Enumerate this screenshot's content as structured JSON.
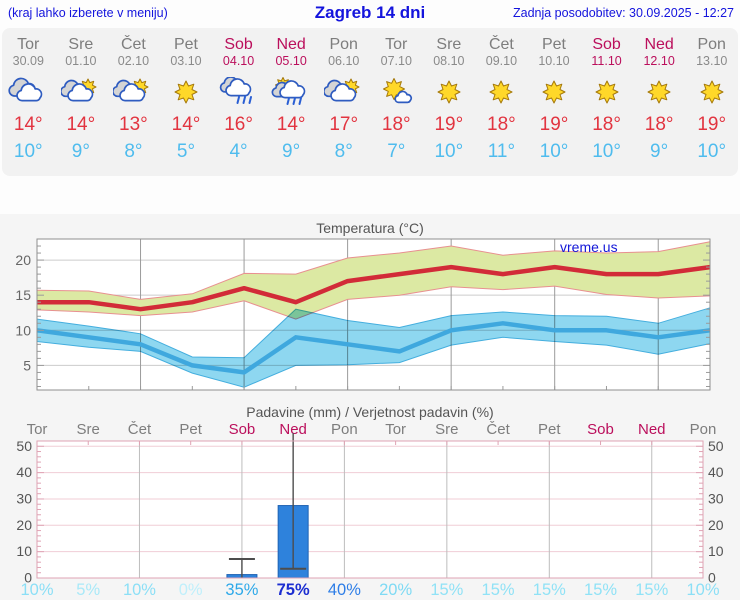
{
  "header": {
    "left_note": "(kraj lahko izberete v meniju)",
    "title": "Zagreb 14 dni",
    "updated": "Zadnja posodobitev: 30.09.2025 - 12:27"
  },
  "watermark": "vreme.us",
  "colors": {
    "link_blue": "#1414dd",
    "weekend_day": "#bb0f5c",
    "weekday_gray": "#7d7d7d",
    "temp_max_red": "#e23440",
    "temp_min_blue": "#4fbcee",
    "bar_blue": "#2e82dc"
  },
  "days": [
    {
      "name": "Tor",
      "date": "30.09",
      "weekend": false,
      "icon": "cloudy",
      "tmax": "14",
      "tmin": "10"
    },
    {
      "name": "Sre",
      "date": "01.10",
      "weekend": false,
      "icon": "partly",
      "tmax": "14",
      "tmin": "9"
    },
    {
      "name": "Čet",
      "date": "02.10",
      "weekend": false,
      "icon": "partly",
      "tmax": "13",
      "tmin": "8"
    },
    {
      "name": "Pet",
      "date": "03.10",
      "weekend": false,
      "icon": "sunny",
      "tmax": "14",
      "tmin": "5"
    },
    {
      "name": "Sob",
      "date": "04.10",
      "weekend": true,
      "icon": "rain",
      "tmax": "16",
      "tmin": "4"
    },
    {
      "name": "Ned",
      "date": "05.10",
      "weekend": true,
      "icon": "sun-rain",
      "tmax": "14",
      "tmin": "9"
    },
    {
      "name": "Pon",
      "date": "06.10",
      "weekend": false,
      "icon": "partly",
      "tmax": "17",
      "tmin": "8"
    },
    {
      "name": "Tor",
      "date": "07.10",
      "weekend": false,
      "icon": "mostly-sunny",
      "tmax": "18",
      "tmin": "7"
    },
    {
      "name": "Sre",
      "date": "08.10",
      "weekend": false,
      "icon": "sunny",
      "tmax": "19",
      "tmin": "10"
    },
    {
      "name": "Čet",
      "date": "09.10",
      "weekend": false,
      "icon": "sunny",
      "tmax": "18",
      "tmin": "11"
    },
    {
      "name": "Pet",
      "date": "10.10",
      "weekend": false,
      "icon": "sunny",
      "tmax": "19",
      "tmin": "10"
    },
    {
      "name": "Sob",
      "date": "11.10",
      "weekend": true,
      "icon": "sunny",
      "tmax": "18",
      "tmin": "10"
    },
    {
      "name": "Ned",
      "date": "12.10",
      "weekend": true,
      "icon": "sunny",
      "tmax": "18",
      "tmin": "9"
    },
    {
      "name": "Pon",
      "date": "13.10",
      "weekend": false,
      "icon": "sunny",
      "tmax": "19",
      "tmin": "10"
    }
  ],
  "chart_data": [
    {
      "type": "line",
      "title": "Temperatura (°C)",
      "ylim": [
        1.5,
        23
      ],
      "yticks": [
        5,
        10,
        15,
        20
      ],
      "x_gridline_days": [
        2,
        4,
        6,
        8,
        10,
        12
      ],
      "categories": [
        "Tor 30.09",
        "Sre 01.10",
        "Čet 02.10",
        "Pet 03.10",
        "Sob 04.10",
        "Ned 05.10",
        "Pon 06.10",
        "Tor 07.10",
        "Sre 08.10",
        "Čet 09.10",
        "Pet 10.10",
        "Sob 11.10",
        "Ned 12.10",
        "Pon 13.10"
      ],
      "series": [
        {
          "name": "max temperature",
          "color": "#d22b38",
          "band_color": "#dce9a3",
          "band_edge": "#e89090",
          "values": [
            14,
            14,
            13,
            14,
            16,
            14,
            17,
            18,
            19,
            18,
            19,
            18,
            18,
            19
          ],
          "band_upper": [
            15.7,
            15.6,
            14.4,
            15.2,
            18.1,
            18,
            20.3,
            21,
            22,
            20.7,
            21.3,
            21,
            21.2,
            22.6
          ],
          "band_lower": [
            12.9,
            12.6,
            12.1,
            12.6,
            14.2,
            11.6,
            14.4,
            15,
            16.2,
            15.8,
            16.3,
            15.1,
            14.6,
            14.9
          ]
        },
        {
          "name": "min temperature",
          "color": "#3fa8de",
          "band_color": "#8ed7f0",
          "band_edge": "#44aede",
          "values": [
            10,
            9,
            8,
            5,
            4,
            9,
            8,
            7,
            10,
            11,
            10,
            10,
            9,
            10
          ],
          "band_upper": [
            11.6,
            10.6,
            9.5,
            6.2,
            6.1,
            13,
            11.4,
            10.4,
            12.1,
            12.6,
            12.1,
            12,
            11,
            13.2
          ],
          "band_lower": [
            8.4,
            7.6,
            7,
            3.9,
            1.9,
            5,
            5.1,
            5.4,
            7.9,
            9,
            8.4,
            7.9,
            6.6,
            8.1
          ]
        }
      ]
    },
    {
      "type": "bar",
      "title": "Padavine (mm) / Verjetnost padavin (%)",
      "ylim": [
        0,
        52
      ],
      "yticks": [
        0,
        10,
        20,
        30,
        40,
        50
      ],
      "x_gridline_days": [
        2,
        4,
        6,
        8,
        10,
        12
      ],
      "values": [
        0,
        0,
        0,
        0,
        1.3,
        27.5,
        0,
        0,
        0,
        0,
        0,
        0,
        0,
        0
      ],
      "whisker_low": [
        null,
        null,
        null,
        null,
        0,
        3.5,
        null,
        null,
        null,
        null,
        null,
        null,
        null,
        null
      ],
      "whisker_high": [
        null,
        null,
        null,
        null,
        7.2,
        55,
        null,
        null,
        null,
        null,
        null,
        null,
        null,
        null
      ],
      "probabilities": [
        "10%",
        "5%",
        "10%",
        "0%",
        "35%",
        "75%",
        "40%",
        "20%",
        "15%",
        "15%",
        "15%",
        "15%",
        "15%",
        "10%"
      ],
      "prob_colors": [
        "#8bdff6",
        "#a9e9f8",
        "#8bdff6",
        "#bfeffb",
        "#2ea9e9",
        "#1c2ed1",
        "#2e7ee7",
        "#7edaf4",
        "#90e2f6",
        "#90e2f6",
        "#90e2f6",
        "#90e2f6",
        "#90e2f6",
        "#8bdff6"
      ]
    }
  ]
}
